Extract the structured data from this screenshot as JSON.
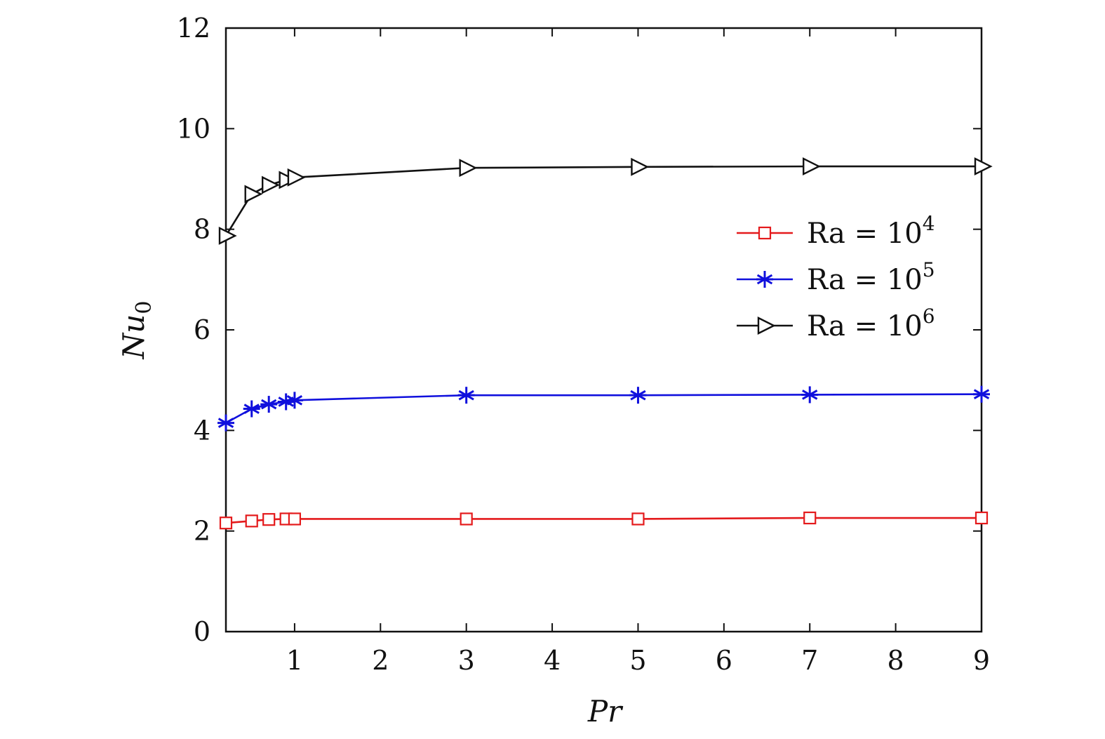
{
  "chart_data": {
    "type": "line",
    "xlabel": "Pr",
    "ylabel": "Nu",
    "ylabel_sub": "0",
    "xlim": [
      0.2,
      9
    ],
    "ylim": [
      0,
      12
    ],
    "xticks": [
      1,
      2,
      3,
      4,
      5,
      6,
      7,
      8,
      9
    ],
    "yticks": [
      0,
      2,
      4,
      6,
      8,
      10,
      12
    ],
    "grid": false,
    "legend_position": "right",
    "x": [
      0.2,
      0.5,
      0.7,
      0.9,
      1,
      3,
      5,
      7,
      9
    ],
    "series": [
      {
        "name": "Ra = 10",
        "exp": "4",
        "color": "#e41a1c",
        "marker": "square",
        "values": [
          2.16,
          2.2,
          2.23,
          2.24,
          2.24,
          2.24,
          2.24,
          2.26,
          2.26
        ]
      },
      {
        "name": "Ra = 10",
        "exp": "5",
        "color": "#1010dd",
        "marker": "asterisk",
        "values": [
          4.15,
          4.43,
          4.52,
          4.57,
          4.6,
          4.7,
          4.7,
          4.71,
          4.72
        ]
      },
      {
        "name": "Ra = 10",
        "exp": "6",
        "color": "#111111",
        "marker": "triangle-right",
        "values": [
          7.87,
          8.7,
          8.88,
          8.98,
          9.03,
          9.22,
          9.24,
          9.25,
          9.25
        ]
      }
    ]
  }
}
